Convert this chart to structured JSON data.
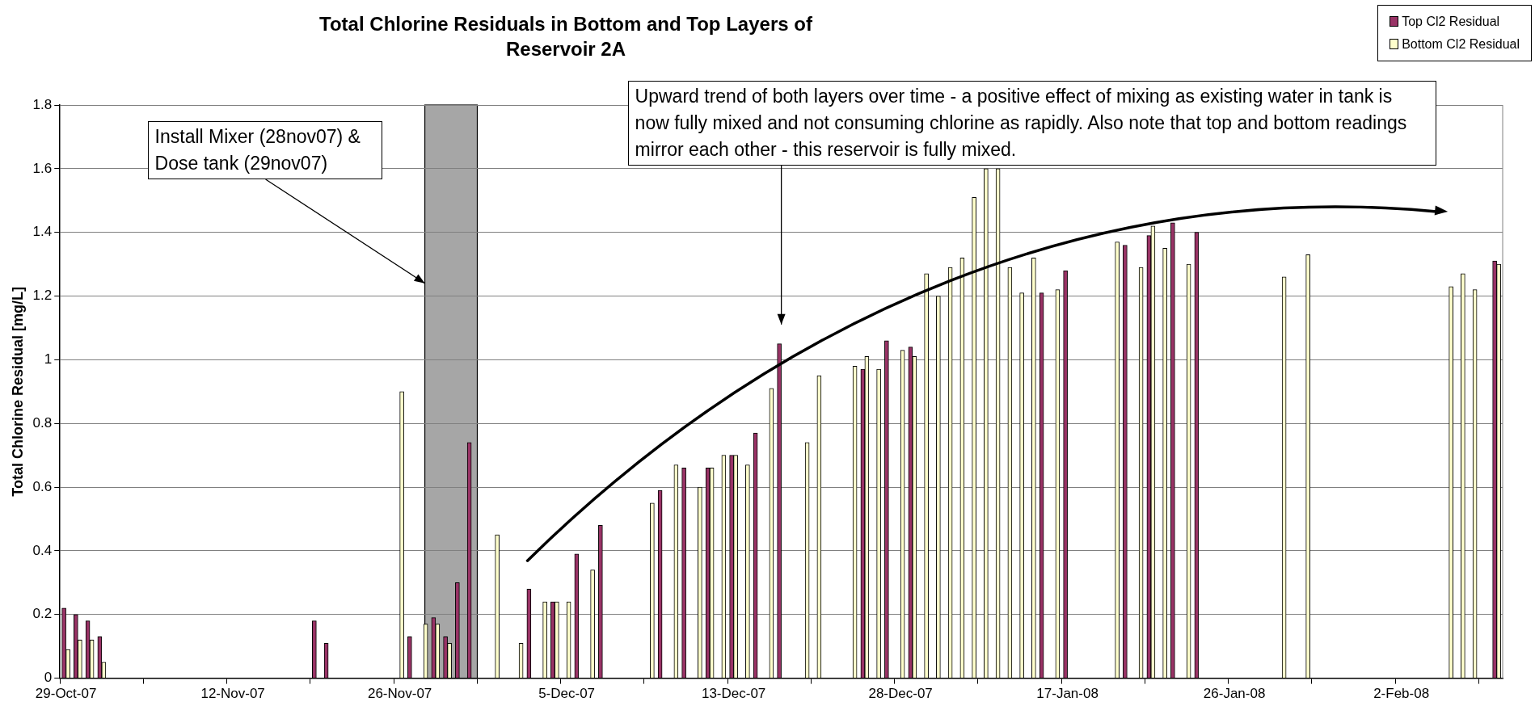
{
  "chart_data": {
    "type": "bar",
    "title": "Total Chlorine Residuals in Bottom and Top Layers of Reservoir 2A",
    "ylabel": "Total Chlorine Residual [mg/L]",
    "categories": [
      "29-Oct-07",
      null,
      null,
      null,
      null,
      null,
      null,
      null,
      null,
      null,
      null,
      null,
      null,
      null,
      "12-Nov-07",
      null,
      null,
      null,
      null,
      null,
      null,
      null,
      null,
      null,
      null,
      null,
      null,
      null,
      "26-Nov-07",
      null,
      null,
      null,
      null,
      null,
      null,
      null,
      null,
      null,
      null,
      null,
      null,
      null,
      "5-Dec-07",
      null,
      null,
      null,
      null,
      null,
      null,
      null,
      null,
      null,
      null,
      null,
      null,
      null,
      "13-Dec-07",
      null,
      null,
      null,
      null,
      null,
      null,
      null,
      null,
      null,
      null,
      null,
      null,
      null,
      "28-Dec-07",
      null,
      null,
      null,
      null,
      null,
      null,
      null,
      null,
      null,
      null,
      null,
      null,
      null,
      "17-Jan-08",
      null,
      null,
      null,
      null,
      null,
      null,
      null,
      null,
      null,
      null,
      null,
      null,
      null,
      "26-Jan-08",
      null,
      null,
      null,
      null,
      null,
      null,
      null,
      null,
      null,
      null,
      null,
      null,
      null,
      "2-Feb-08",
      null,
      null,
      null,
      null,
      null,
      null,
      null,
      null
    ],
    "ylim": [
      0,
      1.8
    ],
    "yticks": [
      0,
      0.2,
      0.4,
      0.6,
      0.8,
      1,
      1.2,
      1.4,
      1.6,
      1.8
    ],
    "grid": "y",
    "legend": "top right",
    "series": [
      {
        "name": "Top Cl2 Residual",
        "color": "#993366",
        "values": [
          0.22,
          0.2,
          0.18,
          0.13,
          null,
          null,
          null,
          null,
          null,
          null,
          null,
          null,
          null,
          null,
          null,
          null,
          null,
          null,
          null,
          null,
          null,
          0.18,
          0.11,
          null,
          null,
          null,
          null,
          null,
          null,
          0.13,
          null,
          0.19,
          0.13,
          0.3,
          0.74,
          null,
          null,
          null,
          null,
          0.28,
          null,
          0.24,
          null,
          0.39,
          null,
          0.48,
          null,
          null,
          null,
          null,
          0.59,
          null,
          0.66,
          null,
          0.66,
          null,
          0.7,
          null,
          0.77,
          null,
          1.05,
          null,
          null,
          null,
          null,
          null,
          null,
          0.97,
          null,
          1.06,
          null,
          1.04,
          null,
          null,
          null,
          null,
          null,
          null,
          null,
          null,
          null,
          null,
          1.21,
          null,
          1.28,
          null,
          null,
          null,
          null,
          1.36,
          null,
          1.39,
          null,
          1.43,
          null,
          1.4,
          null,
          null,
          null,
          null,
          null,
          null,
          null,
          null,
          null,
          null,
          null,
          null,
          null,
          null,
          null,
          null,
          null,
          null,
          null,
          null,
          null,
          null,
          null,
          null,
          1.31
        ]
      },
      {
        "name": "Bottom Cl2 Residual",
        "color": "#ffffcc",
        "values": [
          0.09,
          0.12,
          0.12,
          0.05,
          null,
          null,
          null,
          null,
          null,
          null,
          null,
          null,
          null,
          null,
          null,
          null,
          null,
          null,
          null,
          null,
          null,
          null,
          null,
          null,
          null,
          null,
          null,
          null,
          0.9,
          null,
          0.17,
          0.17,
          0.11,
          null,
          null,
          null,
          0.45,
          null,
          0.11,
          null,
          0.24,
          0.24,
          0.24,
          null,
          0.34,
          null,
          null,
          null,
          null,
          0.55,
          null,
          0.67,
          null,
          0.6,
          0.66,
          0.7,
          0.7,
          0.67,
          null,
          0.91,
          null,
          null,
          0.74,
          0.95,
          null,
          null,
          0.98,
          1.01,
          0.97,
          null,
          1.03,
          1.01,
          1.27,
          1.2,
          1.29,
          1.32,
          1.51,
          1.6,
          1.6,
          1.29,
          1.21,
          1.32,
          null,
          1.22,
          null,
          null,
          null,
          null,
          1.37,
          null,
          1.29,
          1.42,
          1.35,
          null,
          1.3,
          null,
          null,
          null,
          null,
          null,
          null,
          null,
          1.26,
          null,
          1.33,
          null,
          null,
          null,
          null,
          null,
          null,
          null,
          null,
          null,
          null,
          null,
          1.23,
          1.27,
          1.22,
          null,
          1.3
        ]
      }
    ],
    "annotations": [
      "Install Mixer (28nov07) & Dose tank (29nov07)",
      "Upward trend of both layers over time - a positive effect of mixing as existing water in tank is now fully mixed and not consuming chlorine as rapidly. Also note that top and bottom readings mirror each other - this reservoir is fully mixed."
    ]
  }
}
